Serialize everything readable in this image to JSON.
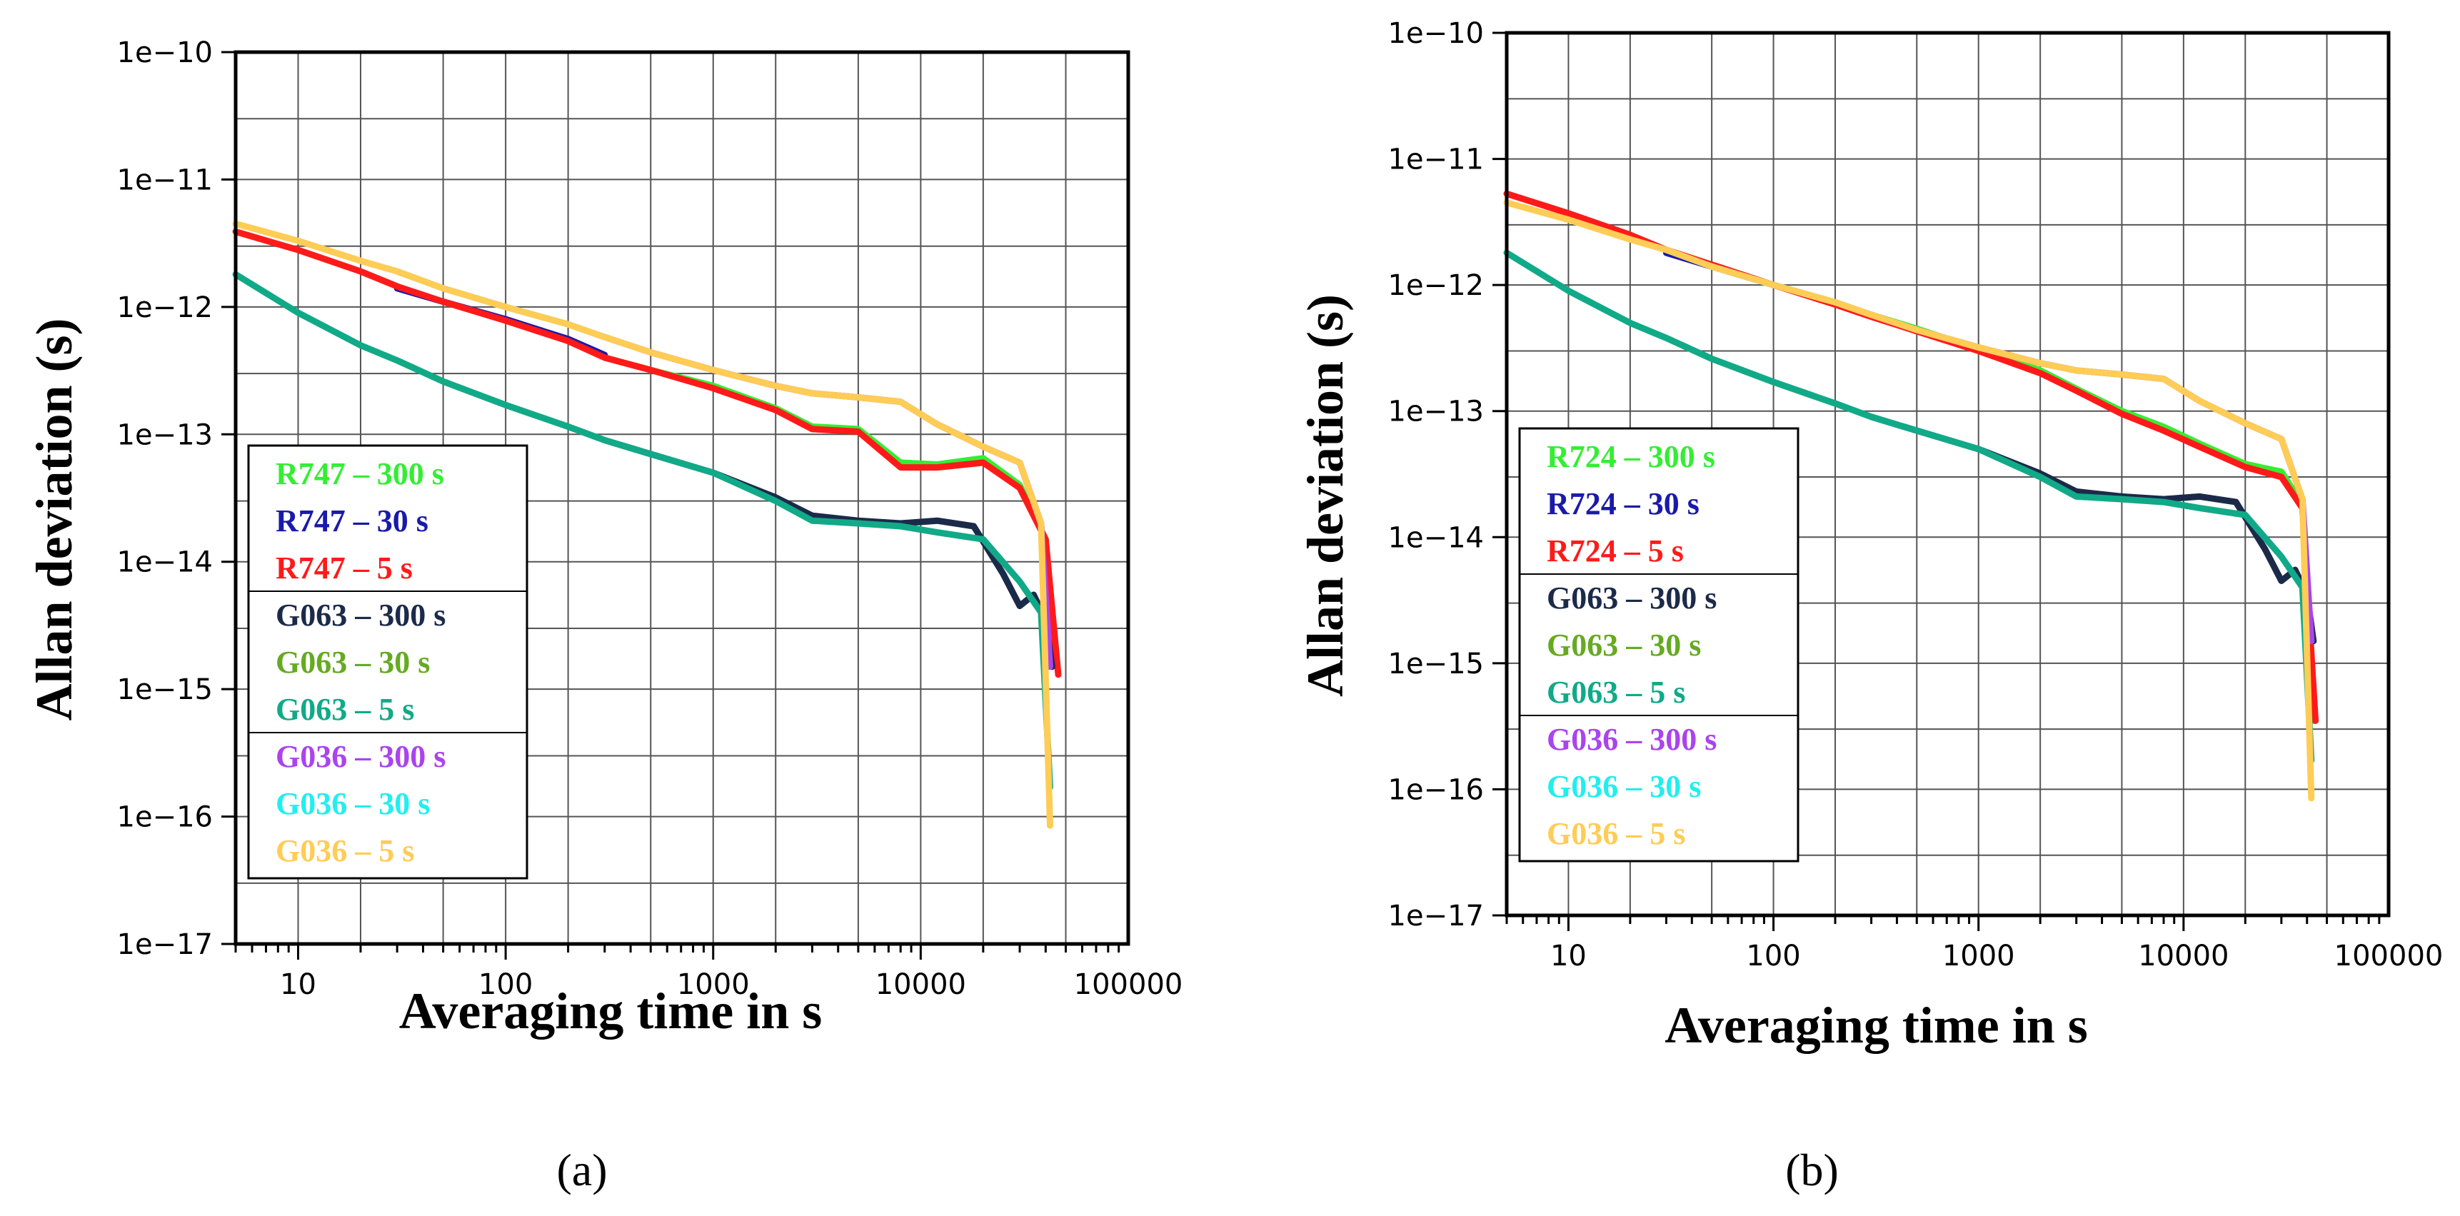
{
  "chart_data": [
    {
      "type": "line",
      "panel_label": "(a)",
      "xlabel": "Averaging time in s",
      "ylabel": "Allan deviation (s)",
      "x_scale": "log",
      "y_scale": "log",
      "xlim": [
        5,
        100000
      ],
      "ylim": [
        1e-17,
        1e-10
      ],
      "grid": true,
      "x_tick_labels": [
        "10",
        "100",
        "1000",
        "10000",
        "100000"
      ],
      "y_tick_labels": [
        "1e−10",
        "1e−11",
        "1e−12",
        "1e−13",
        "1e−14",
        "1e−15",
        "1e−16",
        "1e−17"
      ],
      "legend_position": "bottom-left",
      "series": [
        {
          "name": "R747 – 300 s",
          "color": "#33ee33",
          "x": [
            300,
            500,
            1000,
            2000,
            3000,
            5000,
            8000,
            12000,
            20000,
            30000,
            40000,
            45000
          ],
          "y": [
            4e-13,
            3.2e-13,
            2.4e-13,
            1.6e-13,
            1.15e-13,
            1.1e-13,
            6e-14,
            5.8e-14,
            6.5e-14,
            4e-14,
            1.5e-14,
            1.5e-15
          ]
        },
        {
          "name": "R747 – 30 s",
          "color": "#1a1aaa",
          "x": [
            30,
            50,
            100,
            200,
            300
          ],
          "y": [
            1.4e-12,
            1.1e-12,
            8e-13,
            5.6e-13,
            4.2e-13
          ]
        },
        {
          "name": "R747 – 5 s",
          "color": "#ff1a1a",
          "x": [
            5,
            10,
            20,
            30,
            50,
            100,
            200,
            300,
            500,
            1000,
            2000,
            3000,
            5000,
            8000,
            12000,
            20000,
            30000,
            40000,
            46000
          ],
          "y": [
            3.9e-12,
            2.8e-12,
            1.9e-12,
            1.45e-12,
            1.1e-12,
            7.8e-13,
            5.4e-13,
            4e-13,
            3.2e-13,
            2.3e-13,
            1.55e-13,
            1.1e-13,
            1.05e-13,
            5.5e-14,
            5.5e-14,
            6e-14,
            3.8e-14,
            1.5e-14,
            1.3e-15
          ]
        },
        {
          "name": "G063 – 300 s",
          "color": "#1c2a4a",
          "x": [
            300,
            500,
            1000,
            2000,
            3000,
            5000,
            8000,
            12000,
            18000,
            25000,
            30000,
            35000,
            40000,
            43000
          ],
          "y": [
            9e-14,
            7e-14,
            5e-14,
            3.2e-14,
            2.3e-14,
            2.1e-14,
            2e-14,
            2.1e-14,
            1.9e-14,
            8e-15,
            4.5e-15,
            5.5e-15,
            3.5e-15,
            1.5e-15
          ]
        },
        {
          "name": "G063 – 30 s",
          "color": "#66aa22",
          "x": [
            30,
            50,
            100,
            200,
            300
          ],
          "y": [
            3.8e-13,
            2.6e-13,
            1.7e-13,
            1.15e-13,
            9e-14
          ]
        },
        {
          "name": "G063 – 5 s",
          "color": "#11aa88",
          "x": [
            5,
            10,
            20,
            30,
            50,
            100,
            200,
            300,
            500,
            1000,
            2000,
            3000,
            5000,
            8000,
            12000,
            20000,
            30000,
            38000,
            42000
          ],
          "y": [
            1.8e-12,
            9e-13,
            5e-13,
            3.8e-13,
            2.6e-13,
            1.7e-13,
            1.15e-13,
            9e-14,
            7e-14,
            5e-14,
            3e-14,
            2.1e-14,
            2e-14,
            1.9e-14,
            1.7e-14,
            1.5e-14,
            7e-15,
            4e-15,
            1.7e-16
          ]
        },
        {
          "name": "G036 – 300 s",
          "color": "#aa44ee",
          "x": [
            300,
            500,
            1000,
            2000,
            3000,
            5000,
            8000,
            12000,
            20000,
            30000,
            38000,
            42000
          ],
          "y": [
            5.8e-13,
            4.4e-13,
            3.2e-13,
            2.4e-13,
            2.1e-13,
            1.95e-13,
            1.8e-13,
            1.2e-13,
            8e-14,
            6e-14,
            2e-14,
            1.5e-15
          ]
        },
        {
          "name": "G036 – 30 s",
          "color": "#22eeee",
          "x": [
            30,
            50,
            100,
            200,
            300
          ],
          "y": [
            1.9e-12,
            1.4e-12,
            1e-12,
            7.3e-13,
            5.8e-13
          ]
        },
        {
          "name": "G036 – 5 s",
          "color": "#ffcc55",
          "x": [
            5,
            10,
            20,
            30,
            50,
            100,
            200,
            300,
            500,
            1000,
            2000,
            3000,
            5000,
            8000,
            12000,
            20000,
            30000,
            38000,
            42000
          ],
          "y": [
            4.5e-12,
            3.3e-12,
            2.3e-12,
            1.9e-12,
            1.4e-12,
            1e-12,
            7.3e-13,
            5.8e-13,
            4.4e-13,
            3.2e-13,
            2.4e-13,
            2.1e-13,
            1.95e-13,
            1.8e-13,
            1.2e-13,
            8e-14,
            6e-14,
            2e-14,
            8.5e-17
          ]
        }
      ]
    },
    {
      "type": "line",
      "panel_label": "(b)",
      "xlabel": "Averaging time in s",
      "ylabel": "Allan deviation (s)",
      "x_scale": "log",
      "y_scale": "log",
      "xlim": [
        5,
        100000
      ],
      "ylim": [
        1e-17,
        1e-10
      ],
      "grid": true,
      "x_tick_labels": [
        "10",
        "100",
        "1000",
        "10000",
        "100000"
      ],
      "y_tick_labels": [
        "1e−10",
        "1e−11",
        "1e−12",
        "1e−13",
        "1e−14",
        "1e−15",
        "1e−16",
        "1e−17"
      ],
      "legend_position": "bottom-left",
      "series": [
        {
          "name": "R724 – 300 s",
          "color": "#33ee33",
          "x": [
            300,
            500,
            1000,
            2000,
            3000,
            5000,
            8000,
            12000,
            20000,
            30000,
            38000,
            43000
          ],
          "y": [
            5.8e-13,
            4.5e-13,
            3.1e-13,
            2.1e-13,
            1.5e-13,
            1e-13,
            7.5e-14,
            5.5e-14,
            3.8e-14,
            3.3e-14,
            1.8e-14,
            3.5e-16
          ]
        },
        {
          "name": "R724 – 30 s",
          "color": "#1a1aaa",
          "x": [
            30,
            50,
            100,
            200,
            300
          ],
          "y": [
            1.8e-12,
            1.4e-12,
            1e-12,
            7.2e-13,
            5.8e-13
          ]
        },
        {
          "name": "R724 – 5 s",
          "color": "#ff1a1a",
          "x": [
            5,
            10,
            20,
            30,
            50,
            100,
            200,
            300,
            500,
            1000,
            2000,
            3000,
            5000,
            8000,
            12000,
            20000,
            30000,
            38000,
            44000
          ],
          "y": [
            5.3e-12,
            3.7e-12,
            2.5e-12,
            1.9e-12,
            1.45e-12,
            1e-12,
            7e-13,
            5.6e-13,
            4.3e-13,
            3e-13,
            2e-13,
            1.45e-13,
            9.5e-14,
            7e-14,
            5.2e-14,
            3.6e-14,
            3e-14,
            1.7e-14,
            3.5e-16
          ]
        },
        {
          "name": "G063 – 300 s",
          "color": "#1c2a4a",
          "x": [
            300,
            500,
            1000,
            2000,
            3000,
            5000,
            8000,
            12000,
            18000,
            25000,
            30000,
            35000,
            40000,
            43000
          ],
          "y": [
            9e-14,
            7e-14,
            5e-14,
            3.2e-14,
            2.3e-14,
            2.1e-14,
            2e-14,
            2.1e-14,
            1.9e-14,
            8e-15,
            4.5e-15,
            5.5e-15,
            3.5e-15,
            1.5e-15
          ]
        },
        {
          "name": "G063 – 30 s",
          "color": "#66aa22",
          "x": [
            30,
            50,
            100,
            200,
            300
          ],
          "y": [
            3.8e-13,
            2.6e-13,
            1.7e-13,
            1.15e-13,
            9e-14
          ]
        },
        {
          "name": "G063 – 5 s",
          "color": "#11aa88",
          "x": [
            5,
            10,
            20,
            30,
            50,
            100,
            200,
            300,
            500,
            1000,
            2000,
            3000,
            5000,
            8000,
            12000,
            20000,
            30000,
            38000,
            42000
          ],
          "y": [
            1.8e-12,
            9e-13,
            5e-13,
            3.8e-13,
            2.6e-13,
            1.7e-13,
            1.15e-13,
            9e-14,
            7e-14,
            5e-14,
            3e-14,
            2.1e-14,
            2e-14,
            1.9e-14,
            1.7e-14,
            1.5e-14,
            7e-15,
            4e-15,
            1.7e-16
          ]
        },
        {
          "name": "G036 – 300 s",
          "color": "#aa44ee",
          "x": [
            300,
            500,
            1000,
            2000,
            3000,
            5000,
            8000,
            12000,
            20000,
            30000,
            38000,
            42000
          ],
          "y": [
            5.8e-13,
            4.4e-13,
            3.2e-13,
            2.4e-13,
            2.1e-13,
            1.95e-13,
            1.8e-13,
            1.2e-13,
            8e-14,
            6e-14,
            2e-14,
            1.5e-15
          ]
        },
        {
          "name": "G036 – 30 s",
          "color": "#22eeee",
          "x": [
            30,
            50,
            100,
            200,
            300
          ],
          "y": [
            1.9e-12,
            1.4e-12,
            1e-12,
            7.3e-13,
            5.8e-13
          ]
        },
        {
          "name": "G036 – 5 s",
          "color": "#ffcc55",
          "x": [
            5,
            10,
            20,
            30,
            50,
            100,
            200,
            300,
            500,
            1000,
            2000,
            3000,
            5000,
            8000,
            12000,
            20000,
            30000,
            38000,
            42000
          ],
          "y": [
            4.5e-12,
            3.3e-12,
            2.3e-12,
            1.9e-12,
            1.4e-12,
            1e-12,
            7.3e-13,
            5.8e-13,
            4.4e-13,
            3.2e-13,
            2.4e-13,
            2.1e-13,
            1.95e-13,
            1.8e-13,
            1.2e-13,
            8e-14,
            6e-14,
            2e-14,
            8.5e-17
          ]
        }
      ]
    }
  ]
}
